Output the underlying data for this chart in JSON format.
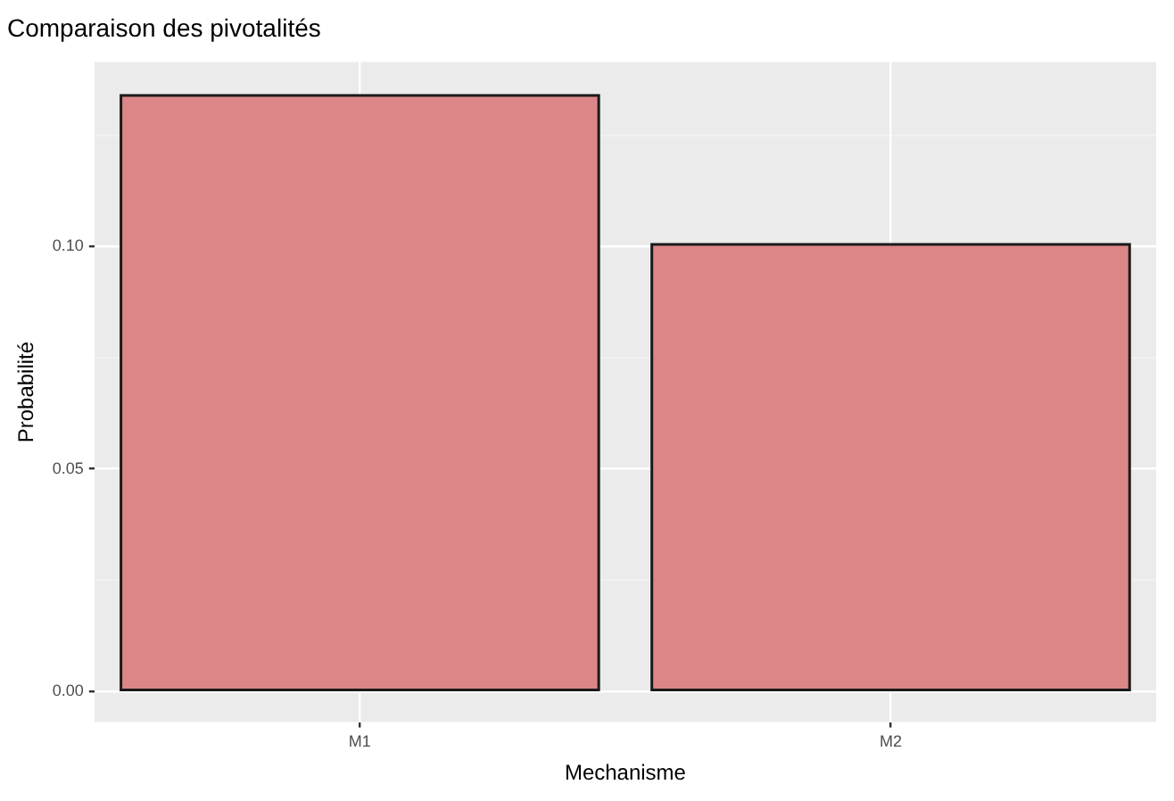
{
  "chart_data": {
    "type": "bar",
    "title": "Comparaison des pivotalités",
    "xlabel": "Mechanisme",
    "ylabel": "Probabilité",
    "categories": [
      "M1",
      "M2"
    ],
    "values": [
      0.134,
      0.1005
    ],
    "color": "#db8687",
    "ylim": [
      -0.007,
      0.1415
    ],
    "yticks": [
      {
        "value": 0,
        "label": "0.00"
      },
      {
        "value": 0.025,
        "label": null
      },
      {
        "value": 0.05,
        "label": "0.05"
      },
      {
        "value": 0.075,
        "label": null
      },
      {
        "value": 0.1,
        "label": "0.10"
      },
      {
        "value": 0.125,
        "label": null
      }
    ],
    "grid": true,
    "legend": false
  }
}
